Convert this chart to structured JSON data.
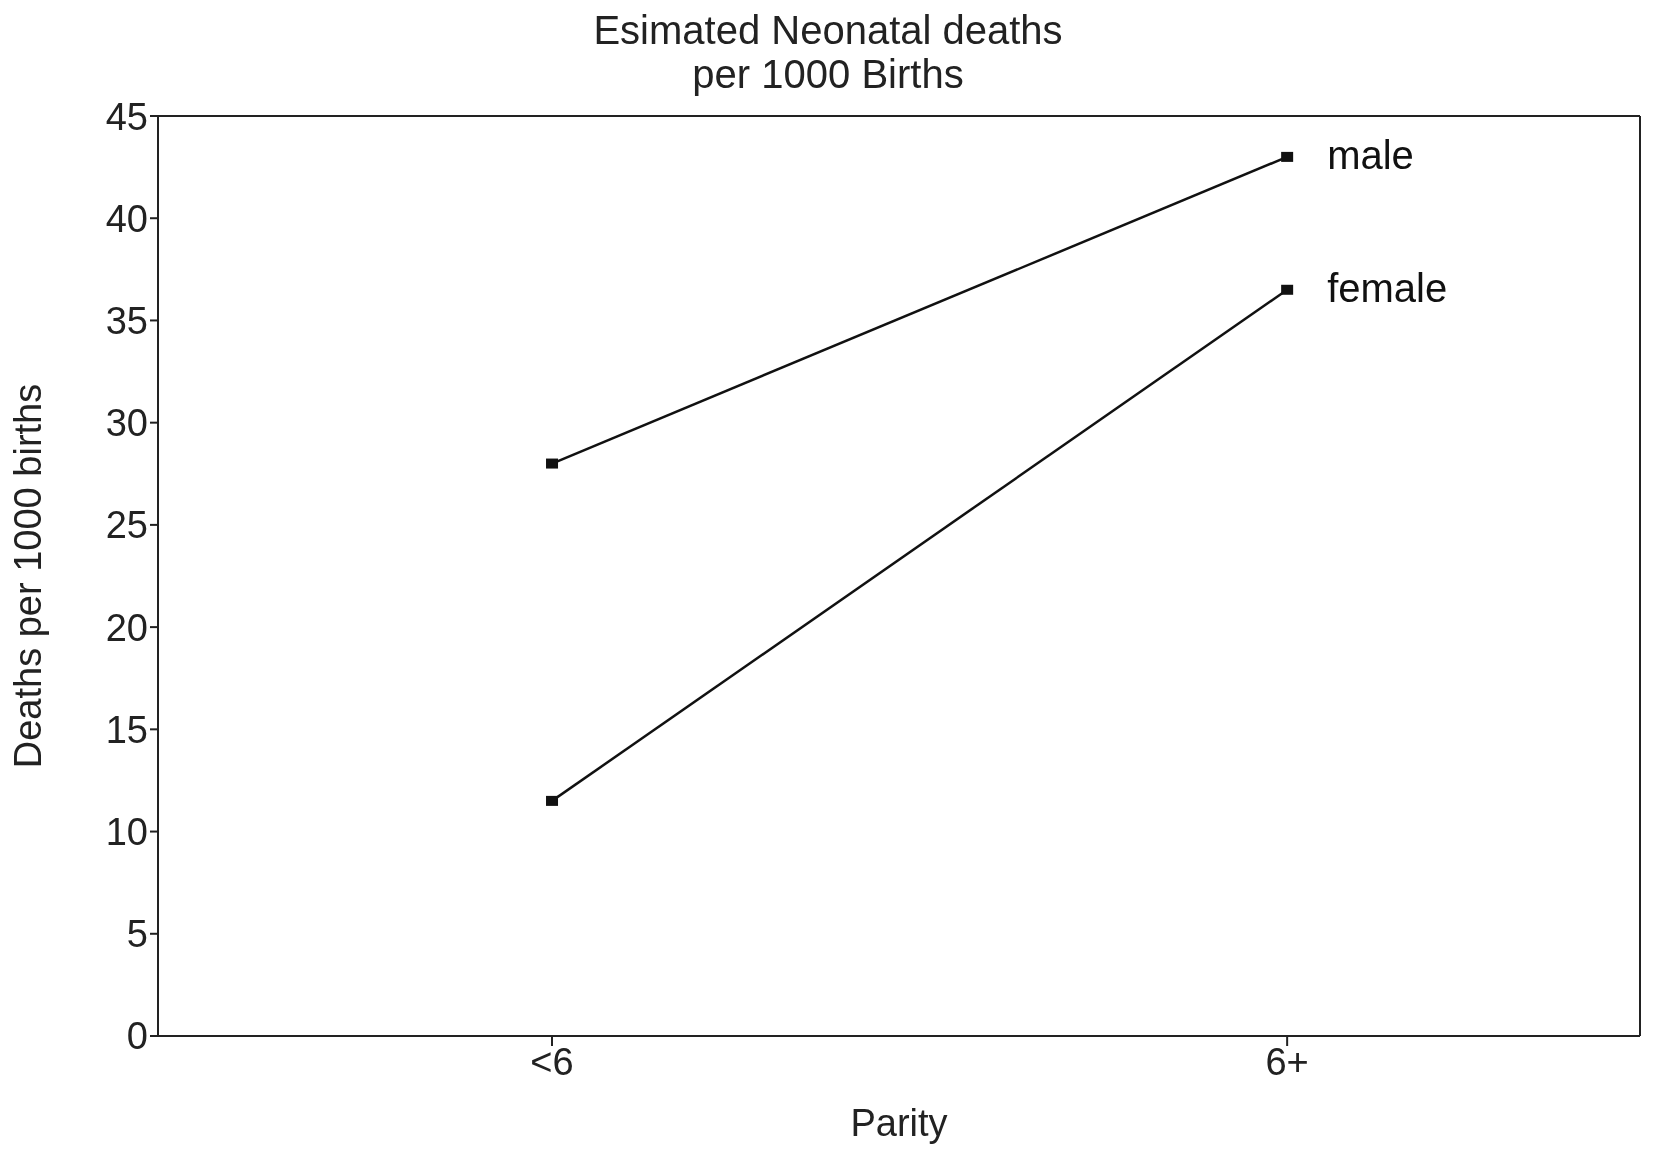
{
  "chart_data": {
    "type": "line",
    "title": "Esimated Neonatal deaths\nper 1000 Births",
    "xlabel": "Parity",
    "ylabel": "Deaths per 1000 births",
    "categories": [
      "<6",
      "6+"
    ],
    "series": [
      {
        "name": "male",
        "color": "#111111",
        "values": [
          28,
          43
        ]
      },
      {
        "name": "female",
        "color": "#111111",
        "values": [
          11.5,
          36.5
        ]
      }
    ],
    "ylim": [
      0,
      45
    ],
    "yticks": [
      0,
      5,
      10,
      15,
      20,
      25,
      30,
      35,
      40,
      45
    ],
    "marker": "square",
    "line_style": "solid"
  }
}
